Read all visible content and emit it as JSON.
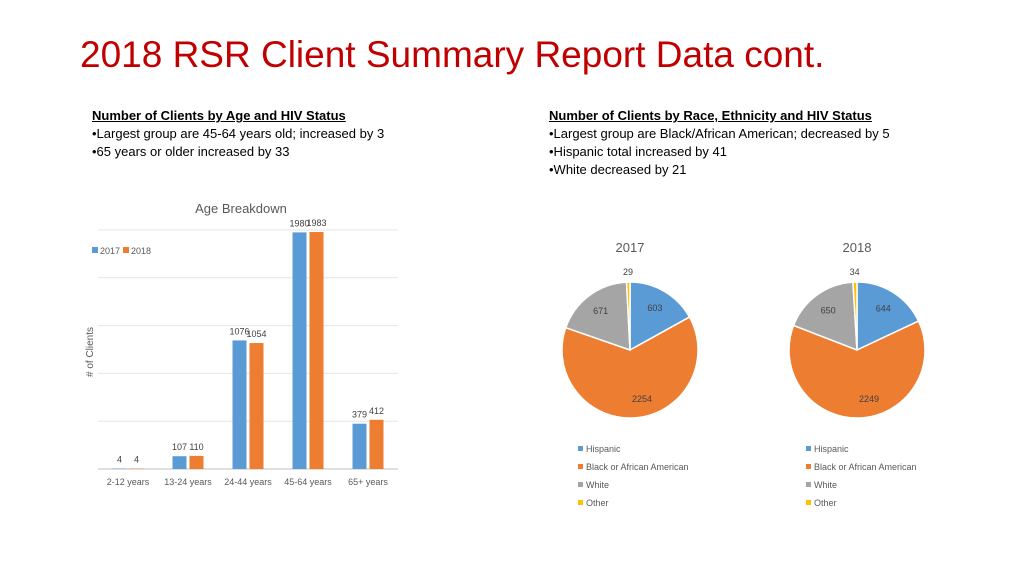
{
  "slide": {
    "title": "2018 RSR Client Summary Report Data cont."
  },
  "age_notes": {
    "heading": "Number of Clients by Age and HIV Status",
    "bullets": [
      "•Largest group are 45-64 years old; increased by 3",
      "•65 years or older increased by 33"
    ]
  },
  "race_notes": {
    "heading": "Number of Clients by Race, Ethnicity and HIV Status",
    "bullets": [
      "•Largest group are Black/African American; decreased by 5",
      "•Hispanic total increased by 41",
      "•White decreased by 21"
    ]
  },
  "colors": {
    "s2017": "#5b9bd5",
    "s2018": "#ed7d31",
    "white": "#a5a5a5",
    "other": "#ffc000",
    "title_red": "#c00000"
  },
  "chart_data": [
    {
      "type": "bar",
      "title": "Age Breakdown",
      "xlabel": "",
      "ylabel": "# of Clients",
      "categories": [
        "2-12 years",
        "13-24 years",
        "24-44 years",
        "45-64 years",
        "65+ years"
      ],
      "series": [
        {
          "name": "2017",
          "values": [
            4,
            107,
            1076,
            1980,
            379
          ]
        },
        {
          "name": "2018",
          "values": [
            4,
            110,
            1054,
            1983,
            412
          ]
        }
      ],
      "ylim": [
        0,
        2000
      ],
      "grid": true,
      "legend": "top-left"
    },
    {
      "type": "pie",
      "title": "2017",
      "labels": [
        "Hispanic",
        "Black or African American",
        "White",
        "Other"
      ],
      "values": [
        603,
        2254,
        671,
        29
      ],
      "legend": "bottom"
    },
    {
      "type": "pie",
      "title": "2018",
      "labels": [
        "Hispanic",
        "Black or African American",
        "White",
        "Other"
      ],
      "values": [
        644,
        2249,
        650,
        34
      ],
      "legend": "bottom"
    }
  ]
}
